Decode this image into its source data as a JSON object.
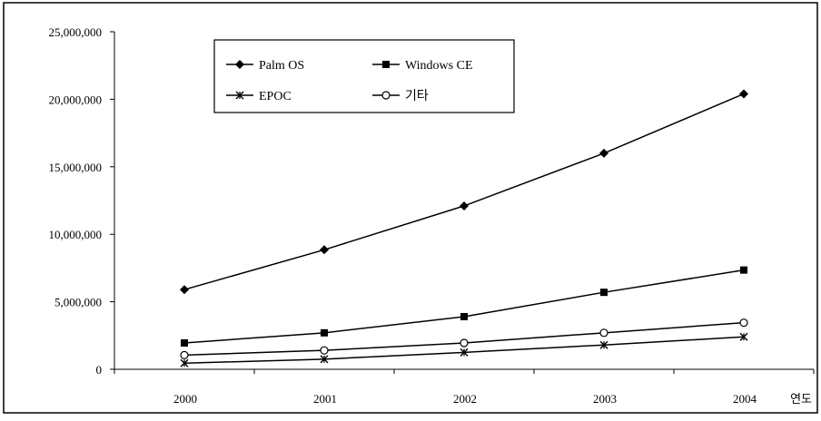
{
  "chart_data": {
    "type": "line",
    "categories": [
      "2000",
      "2001",
      "2002",
      "2003",
      "2004"
    ],
    "x_axis_unit_label": "연도",
    "ylim": [
      0,
      25000000
    ],
    "yticks": [
      "0",
      "5,000,000",
      "10,000,000",
      "15,000,000",
      "20,000,000",
      "25,000,000"
    ],
    "grid": false,
    "legend_position": "top-left",
    "series": [
      {
        "name": "Palm OS",
        "marker": "diamond-filled",
        "values": [
          5900000,
          8850000,
          12100000,
          16000000,
          20400000
        ]
      },
      {
        "name": "Windows CE",
        "marker": "square-filled",
        "values": [
          1950000,
          2700000,
          3900000,
          5700000,
          7350000
        ]
      },
      {
        "name": "EPOC",
        "marker": "star-x",
        "values": [
          450000,
          750000,
          1250000,
          1800000,
          2400000
        ]
      },
      {
        "name": "기타",
        "marker": "circle-open",
        "values": [
          1050000,
          1400000,
          1950000,
          2700000,
          3450000
        ]
      }
    ]
  }
}
